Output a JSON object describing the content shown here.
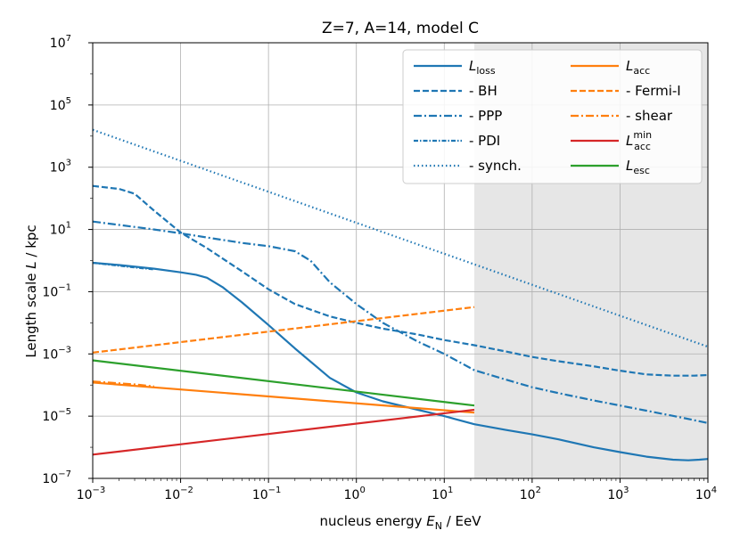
{
  "chart_data": {
    "type": "line",
    "title": "Z=7, A=14, model C",
    "xlabel": "nucleus energy E_N / EeV",
    "ylabel": "Length scale L / kpc",
    "xscale": "log",
    "yscale": "log",
    "xlim": [
      0.001,
      10000
    ],
    "ylim": [
      1e-07,
      10000000.0
    ],
    "grid": true,
    "shaded_region_x": [
      22,
      10000
    ],
    "x_ticks": [
      0.001,
      0.01,
      0.1,
      1,
      10,
      100,
      1000,
      10000
    ],
    "x_tick_bases": [
      "10",
      "10",
      "10",
      "10",
      "10",
      "10",
      "10",
      "10"
    ],
    "x_tick_exps": [
      "−3",
      "−2",
      "−1",
      "0",
      "1",
      "2",
      "3",
      "4"
    ],
    "y_ticks": [
      1e-07,
      1e-05,
      0.001,
      0.1,
      10,
      1000,
      100000,
      10000000
    ],
    "y_tick_bases": [
      "10",
      "10",
      "10",
      "10",
      "10",
      "10",
      "10",
      "10"
    ],
    "y_tick_exps": [
      "−7",
      "−5",
      "−3",
      "−1",
      "1",
      "3",
      "5",
      "7"
    ],
    "legend_position": "top-right",
    "series": [
      {
        "key": "loss",
        "name": "L_loss",
        "label_main": "L",
        "label_sub": "loss",
        "label_sup": "",
        "color": "#1f77b4",
        "style": "solid",
        "x": [
          0.001,
          0.002,
          0.005,
          0.01,
          0.015,
          0.02,
          0.03,
          0.05,
          0.1,
          0.2,
          0.5,
          1,
          2,
          5,
          10,
          22,
          50,
          100,
          200,
          500,
          1000,
          2000,
          4000,
          6000,
          8000,
          10000
        ],
        "y": [
          0.85,
          0.72,
          0.55,
          0.42,
          0.35,
          0.28,
          0.14,
          0.045,
          0.0085,
          0.0015,
          0.00017,
          5.8e-05,
          3e-05,
          1.6e-05,
          1e-05,
          5.5e-06,
          3.6e-06,
          2.6e-06,
          1.8e-06,
          1e-06,
          7e-07,
          5e-07,
          4e-07,
          3.8e-07,
          4e-07,
          4.2e-07
        ]
      },
      {
        "key": "bh",
        "name": "- BH",
        "label_main": "- BH",
        "label_sub": "",
        "label_sup": "",
        "color": "#1f77b4",
        "style": "dashed",
        "x": [
          0.001,
          0.002,
          0.003,
          0.005,
          0.01,
          0.02,
          0.05,
          0.1,
          0.2,
          0.5,
          1,
          2,
          5,
          10,
          22,
          50,
          100,
          200,
          500,
          1000,
          2000,
          4000,
          7000,
          10000
        ],
        "y": [
          250,
          200,
          140,
          40,
          8,
          2.5,
          0.45,
          0.12,
          0.04,
          0.016,
          0.01,
          0.0065,
          0.0042,
          0.0028,
          0.0019,
          0.0012,
          0.0008,
          0.00058,
          0.0004,
          0.00029,
          0.00022,
          0.0002,
          0.0002,
          0.00021
        ]
      },
      {
        "key": "ppp",
        "name": "- PPP",
        "label_main": "- PPP",
        "label_sub": "",
        "label_sup": "",
        "color": "#1f77b4",
        "style": "dashdot",
        "x": [
          0.001,
          0.002,
          0.005,
          0.01,
          0.02,
          0.05,
          0.1,
          0.2,
          0.3,
          0.5,
          1,
          2,
          5,
          10,
          22,
          50,
          100,
          200,
          500,
          1000,
          2000,
          5000,
          10000
        ],
        "y": [
          18,
          14,
          10,
          7.5,
          5.5,
          3.7,
          2.9,
          2,
          1,
          0.2,
          0.04,
          0.01,
          0.0025,
          0.001,
          0.0003,
          0.00015,
          8.5e-05,
          5.5e-05,
          3.2e-05,
          2.2e-05,
          1.5e-05,
          9e-06,
          6e-06
        ]
      },
      {
        "key": "pdi",
        "name": "- PDI",
        "label_main": "- PDI",
        "label_sub": "",
        "label_sup": "",
        "color": "#1f77b4",
        "style": "dashdot2",
        "x": [
          0.001,
          0.003,
          0.005
        ],
        "y": [
          0.85,
          0.6,
          0.52
        ]
      },
      {
        "key": "synch",
        "name": "- synch.",
        "label_main": "- synch.",
        "label_sub": "",
        "label_sup": "",
        "color": "#1f77b4",
        "style": "dotted",
        "x": [
          0.001,
          10000
        ],
        "y": [
          16000,
          0.0017
        ]
      },
      {
        "key": "acc",
        "name": "L_acc",
        "label_main": "L",
        "label_sub": "acc",
        "label_sup": "",
        "color": "#ff7f0e",
        "style": "solid",
        "x": [
          0.001,
          22
        ],
        "y": [
          0.00012,
          1.3e-05
        ]
      },
      {
        "key": "fermi",
        "name": "- Fermi-I",
        "label_main": "- Fermi-I",
        "label_sub": "",
        "label_sup": "",
        "color": "#ff7f0e",
        "style": "dashed",
        "x": [
          0.001,
          22
        ],
        "y": [
          0.0011,
          0.032
        ]
      },
      {
        "key": "shear",
        "name": "- shear",
        "label_main": "- shear",
        "label_sub": "",
        "label_sup": "",
        "color": "#ff7f0e",
        "style": "dashdot",
        "x": [
          0.001,
          0.003,
          0.005
        ],
        "y": [
          0.00013,
          0.000105,
          9e-05
        ]
      },
      {
        "key": "accmin",
        "name": "L_acc^min",
        "label_main": "L",
        "label_sub": "acc",
        "label_sup": "min",
        "color": "#d62728",
        "style": "solid",
        "x": [
          0.001,
          22
        ],
        "y": [
          5.8e-07,
          1.6e-05
        ]
      },
      {
        "key": "esc",
        "name": "L_esc",
        "label_main": "L",
        "label_sub": "esc",
        "label_sup": "",
        "color": "#2ca02c",
        "style": "solid",
        "x": [
          0.001,
          22
        ],
        "y": [
          0.00062,
          2.2e-05
        ]
      }
    ]
  }
}
